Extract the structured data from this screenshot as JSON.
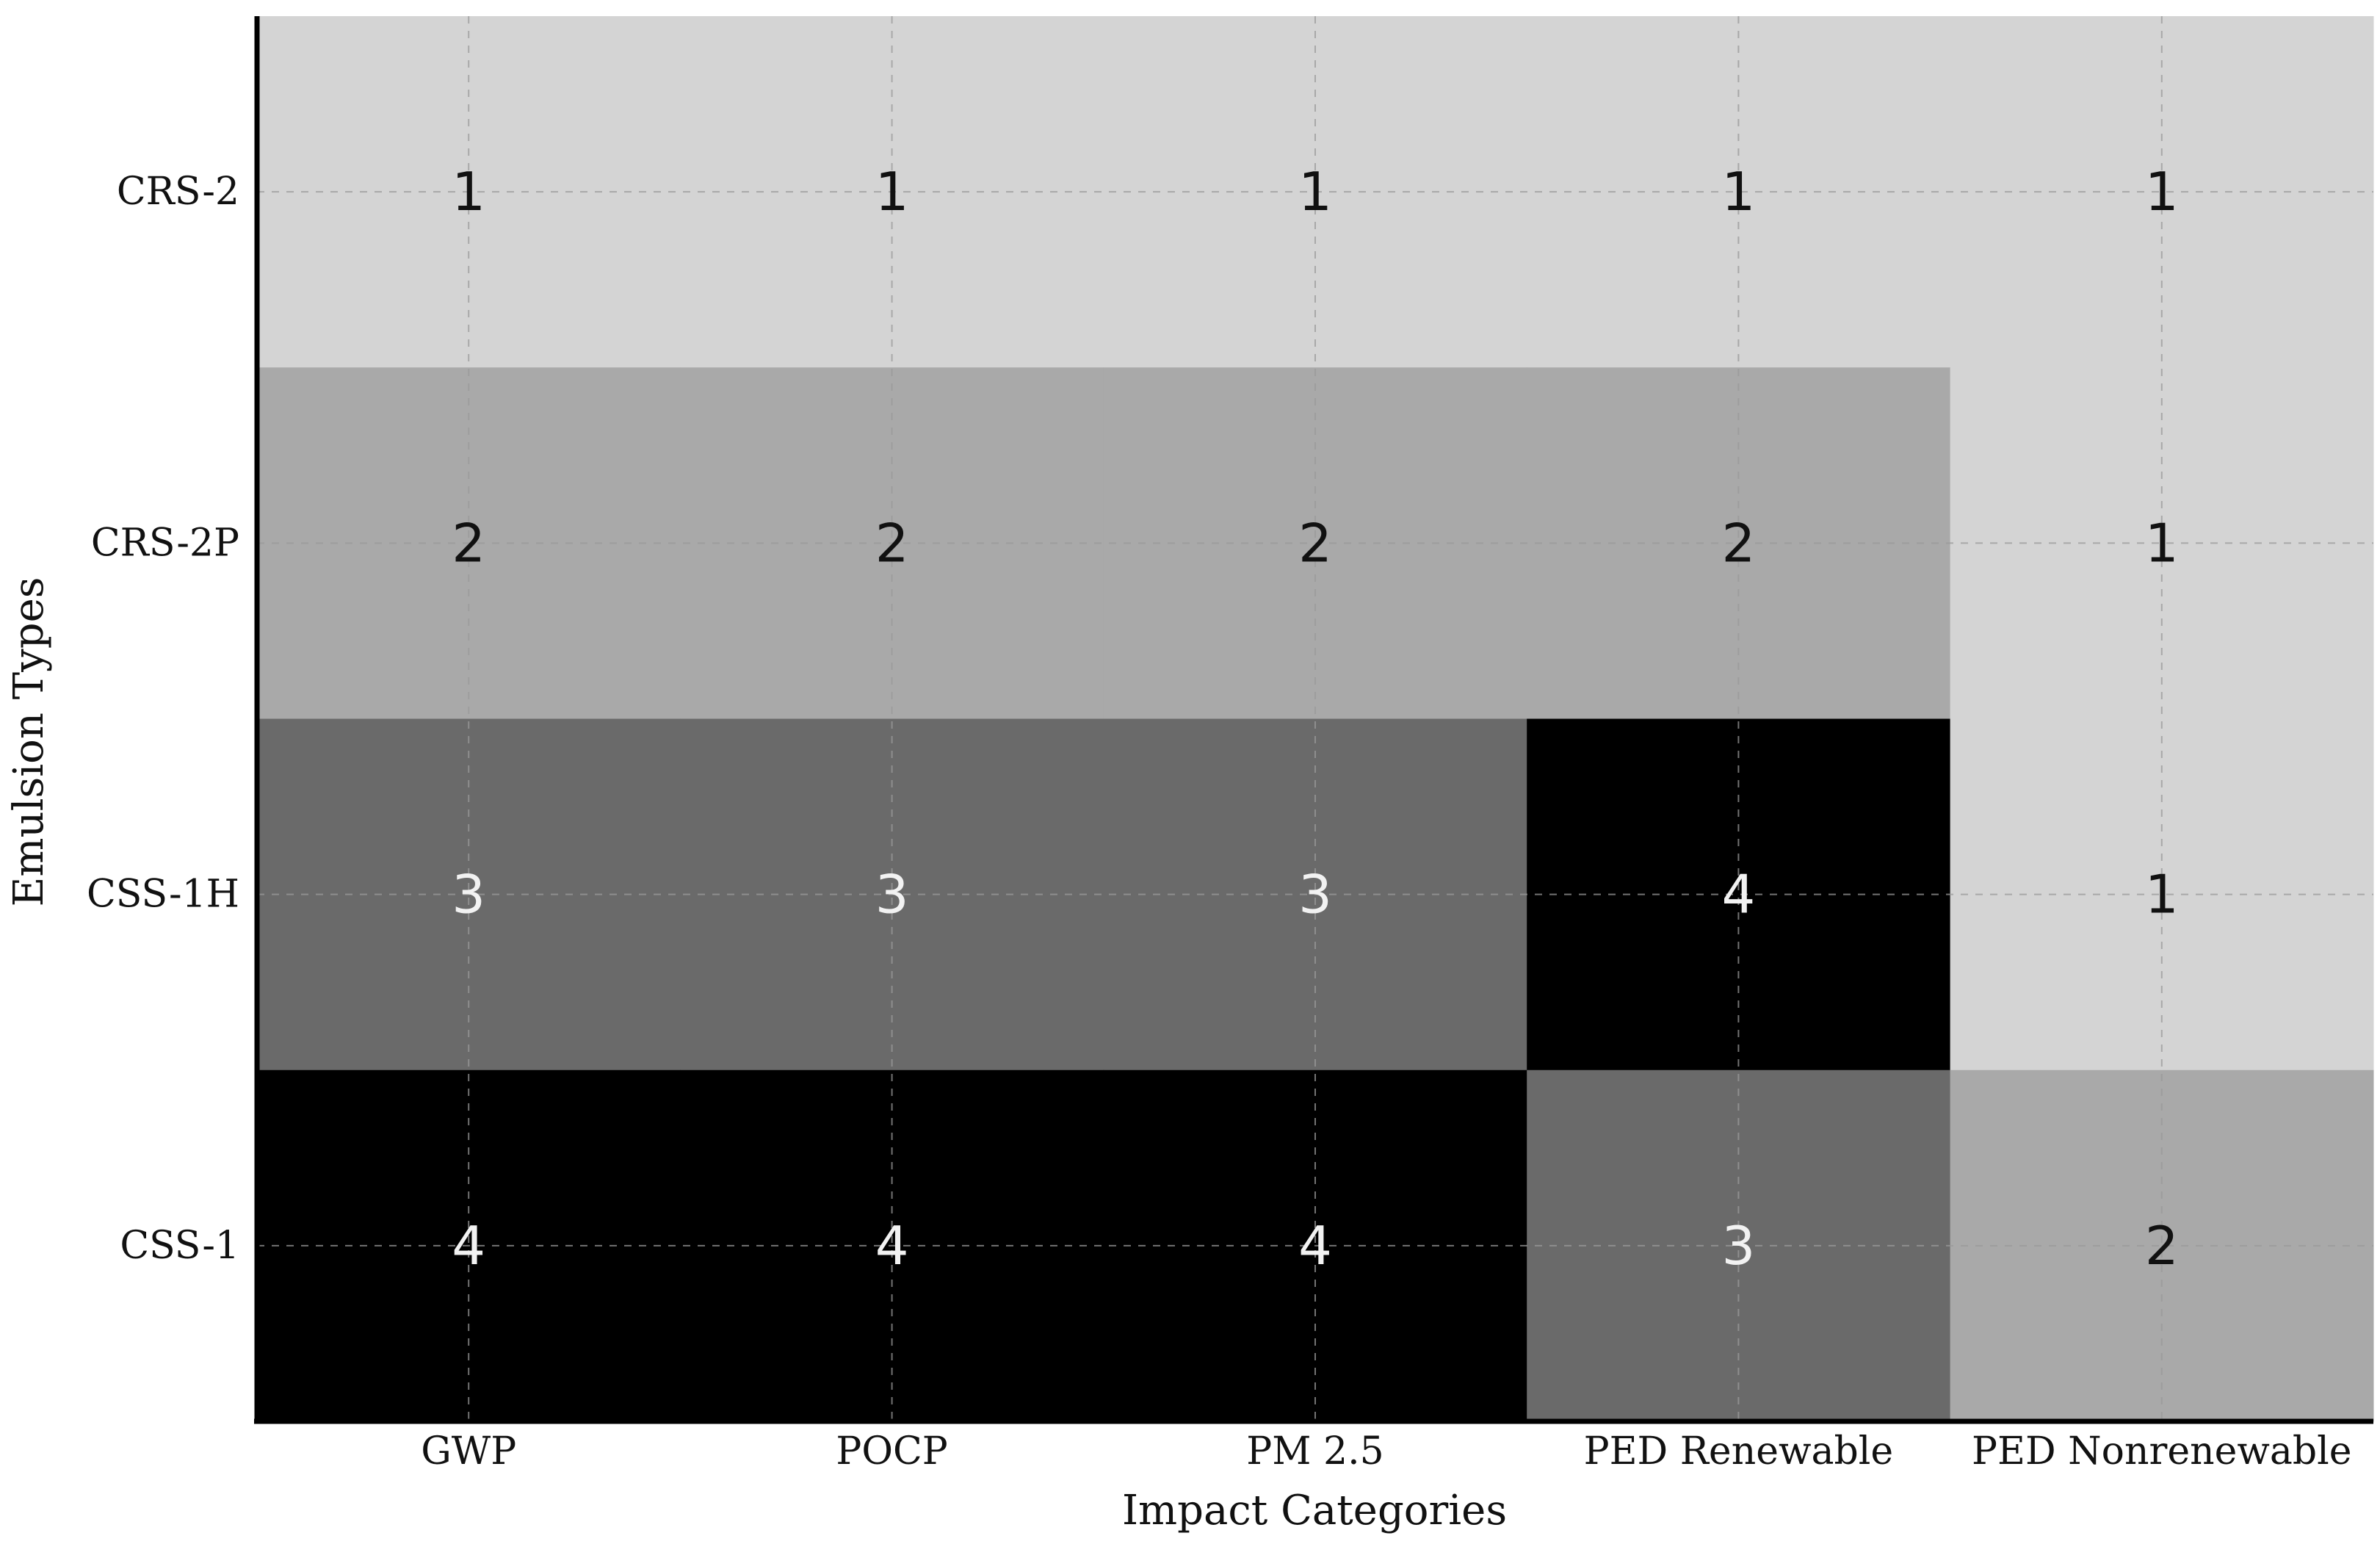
{
  "chart_data": {
    "type": "heatmap",
    "title": "",
    "xlabel": "Impact Categories",
    "ylabel": "Emulsion Types",
    "x_categories": [
      "GWP",
      "POCP",
      "PM 2.5",
      "PED Renewable",
      "PED Nonrenewable"
    ],
    "y_categories": [
      "CRS-2",
      "CRS-2P",
      "CSS-1H",
      "CSS-1"
    ],
    "values": [
      [
        1,
        1,
        1,
        1,
        1
      ],
      [
        2,
        2,
        2,
        2,
        1
      ],
      [
        3,
        3,
        3,
        4,
        1
      ],
      [
        4,
        4,
        4,
        3,
        2
      ]
    ],
    "color_scale": {
      "1": "#d4d4d4",
      "2": "#a9a9a9",
      "3": "#6a6a6a",
      "4": "#000000"
    },
    "label_colors": {
      "dark_cell_text": "#f2f2f2",
      "light_cell_text": "#111111"
    },
    "grid": true,
    "legend": "none"
  }
}
